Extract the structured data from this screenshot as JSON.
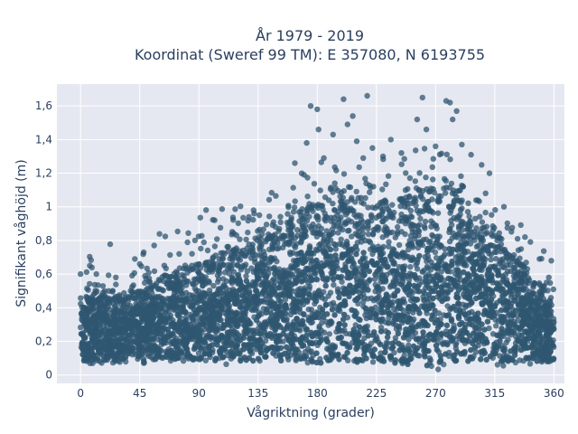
{
  "chart_data": {
    "type": "scatter",
    "title_line1": "År 1979 - 2019",
    "title_line2": "Koordinat (Sweref 99 TM): E 357080, N 6193755",
    "xlabel": "Vågriktning (grader)",
    "ylabel": "Signifikant våghöjd (m)",
    "xlim": [
      -18,
      368
    ],
    "ylim": [
      -0.05,
      1.73
    ],
    "x_ticks": [
      0,
      45,
      90,
      135,
      180,
      225,
      270,
      315,
      360
    ],
    "x_tick_labels": [
      "0",
      "45",
      "90",
      "135",
      "180",
      "225",
      "270",
      "315",
      "360"
    ],
    "y_ticks": [
      0,
      0.2,
      0.4,
      0.6,
      0.8,
      1.0,
      1.2,
      1.4,
      1.6
    ],
    "y_tick_labels": [
      "0",
      "0,2",
      "0,4",
      "0,6",
      "0,8",
      "1",
      "1,2",
      "1,4",
      "1,6"
    ],
    "grid": true,
    "marker_color": "#2f5670",
    "plot_bg": "#e5e8f0",
    "envelope": {
      "x": [
        0,
        15,
        30,
        45,
        60,
        75,
        90,
        105,
        120,
        135,
        150,
        165,
        180,
        195,
        210,
        225,
        240,
        255,
        270,
        285,
        300,
        315,
        330,
        345,
        360
      ],
      "upper": [
        0.44,
        0.46,
        0.47,
        0.49,
        0.56,
        0.63,
        0.66,
        0.73,
        0.77,
        0.8,
        0.84,
        0.97,
        1.02,
        1.05,
        1.06,
        1.03,
        1.05,
        1.08,
        1.13,
        1.1,
        0.92,
        0.83,
        0.73,
        0.55,
        0.43
      ],
      "lower": [
        0.06,
        0.07,
        0.07,
        0.07,
        0.07,
        0.07,
        0.07,
        0.06,
        0.06,
        0.06,
        0.06,
        0.06,
        0.05,
        0.05,
        0.05,
        0.05,
        0.05,
        0.04,
        0.03,
        0.04,
        0.05,
        0.05,
        0.06,
        0.06,
        0.07
      ]
    },
    "outliers": [
      {
        "x": 0,
        "y": 0.6
      },
      {
        "x": 7,
        "y": 0.65
      },
      {
        "x": 12,
        "y": 0.6
      },
      {
        "x": 45,
        "y": 0.66
      },
      {
        "x": 48,
        "y": 0.73
      },
      {
        "x": 56,
        "y": 0.77
      },
      {
        "x": 75,
        "y": 0.72
      },
      {
        "x": 87,
        "y": 0.8
      },
      {
        "x": 102,
        "y": 0.92
      },
      {
        "x": 128,
        "y": 0.94
      },
      {
        "x": 132,
        "y": 0.96
      },
      {
        "x": 136,
        "y": 0.95
      },
      {
        "x": 163,
        "y": 1.26
      },
      {
        "x": 170,
        "y": 1.19
      },
      {
        "x": 172,
        "y": 1.38
      },
      {
        "x": 175,
        "y": 1.6
      },
      {
        "x": 180,
        "y": 1.58
      },
      {
        "x": 181,
        "y": 1.46
      },
      {
        "x": 185,
        "y": 1.29
      },
      {
        "x": 192,
        "y": 1.43
      },
      {
        "x": 200,
        "y": 1.64
      },
      {
        "x": 203,
        "y": 1.49
      },
      {
        "x": 207,
        "y": 1.54
      },
      {
        "x": 210,
        "y": 1.39
      },
      {
        "x": 215,
        "y": 1.29
      },
      {
        "x": 218,
        "y": 1.66
      },
      {
        "x": 222,
        "y": 1.35
      },
      {
        "x": 230,
        "y": 1.3
      },
      {
        "x": 236,
        "y": 1.4
      },
      {
        "x": 244,
        "y": 1.32
      },
      {
        "x": 256,
        "y": 1.52
      },
      {
        "x": 260,
        "y": 1.65
      },
      {
        "x": 263,
        "y": 1.46
      },
      {
        "x": 270,
        "y": 1.36
      },
      {
        "x": 278,
        "y": 1.63
      },
      {
        "x": 281,
        "y": 1.62
      },
      {
        "x": 283,
        "y": 1.52
      },
      {
        "x": 286,
        "y": 1.57
      },
      {
        "x": 290,
        "y": 1.37
      },
      {
        "x": 297,
        "y": 1.31
      },
      {
        "x": 305,
        "y": 1.25
      },
      {
        "x": 311,
        "y": 1.2
      },
      {
        "x": 322,
        "y": 1.0
      },
      {
        "x": 338,
        "y": 0.82
      },
      {
        "x": 349,
        "y": 0.69
      },
      {
        "x": 358,
        "y": 0.68
      }
    ]
  }
}
